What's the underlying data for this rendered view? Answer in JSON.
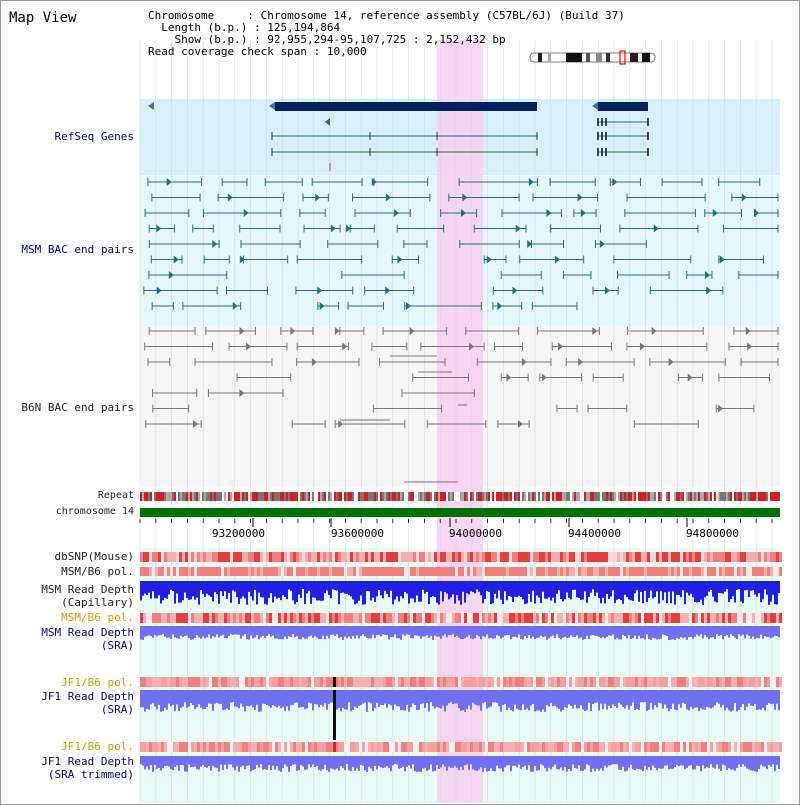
{
  "view": {
    "title": "Map View",
    "header": {
      "chromosome_label": "Chromosome",
      "chromosome_value": "Chromosome 14, reference assembly (C57BL/6J) (Build 37)",
      "length_label": "Length (b.p.)",
      "length_value": "125,194,864",
      "show_label": "Show (b.p.)",
      "show_value": "92,955,294-95,107,725 : 2,152,432 bp",
      "coverage_label": "Read coverage check span",
      "coverage_value": "10,000"
    }
  },
  "tracks": {
    "refseq": "RefSeq Genes",
    "msm_bac": "MSM BAC end pairs",
    "b6n_bac": "B6N BAC end pairs",
    "repeat": "Repeat",
    "chromosome": "chromosome 14",
    "dbsnp": "dbSNP(Mouse)",
    "msm_b6_pol_1": "MSM/B6 pol.",
    "msm_depth_cap_1": "MSM Read Depth",
    "msm_depth_cap_2": "(Capillary)",
    "msm_b6_pol_2": "MSM/B6 pol.",
    "msm_depth_sra_1": "MSM Read Depth",
    "msm_depth_sra_2": "(SRA)",
    "jf1_b6_pol_1": "JF1/B6 pol.",
    "jf1_depth_sra_1": "JF1 Read Depth",
    "jf1_depth_sra_2": "(SRA)",
    "jf1_b6_pol_2": "JF1/B6 pol.",
    "jf1_depth_trim_1": "JF1 Read Depth",
    "jf1_depth_trim_2": "(SRA trimmed)"
  },
  "axis": {
    "ticks": [
      "93200000",
      "93600000",
      "94000000",
      "94400000",
      "94800000"
    ]
  },
  "colors": {
    "highlight": "#f8d0f0",
    "refseq_bg": "#d8f0fa",
    "msm_bg": "#e6f8fa",
    "b6n_bg": "#f6f6f6",
    "gene_dark": "#002060",
    "msm_line": "#1f6f8b",
    "b6n_line": "#777777",
    "chromosome_bar": "#007000",
    "depth_blue": "#2020e0",
    "depth_light": "#7070f0"
  }
}
